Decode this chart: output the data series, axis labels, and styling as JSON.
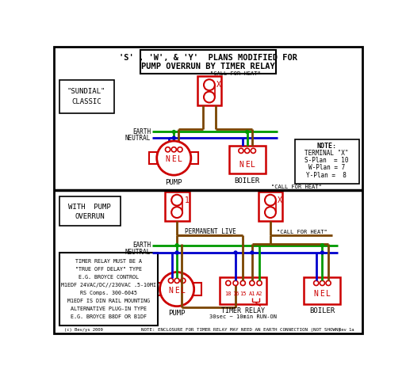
{
  "bg_color": "#ffffff",
  "red": "#cc0000",
  "green": "#009900",
  "blue": "#0000cc",
  "brown": "#7a4500",
  "black": "#000000",
  "title_line1": "'S' , 'W', & 'Y'  PLANS MODIFIED FOR",
  "title_line2": "PUMP OVERRUN BY TIMER RELAY",
  "sundial_lines": [
    "\"SUNDIAL\"",
    "CLASSIC"
  ],
  "with_pump_lines": [
    "WITH  PUMP",
    "OVERRUN"
  ],
  "note_lines": [
    "NOTE:",
    "TERMINAL \"X\"",
    "S-Plan  = 10",
    "W-Plan = 7",
    "Y-Plan =  8"
  ],
  "info_lines": [
    "TIMER RELAY MUST BE A",
    "\"TRUE OFF DELAY\" TYPE",
    "E.G. BROYCE CONTROL",
    "M1EDF 24VAC/DC//230VAC .5-10MI",
    "RS Comps. 300-6045",
    "M1EDF IS DIN RAIL MOUNTING",
    "ALTERNATIVE PLUG-IN TYPE",
    "E.G. BROYCE B8DF OR B1DF"
  ],
  "bottom_note": "NOTE: ENCLOSURE FOR TIMER RELAY MAY NEED AN EARTH CONNECTION (NOT SHOWN)",
  "credit_left": "(c) Bev/ys 2009",
  "credit_right": "Rev 1a"
}
